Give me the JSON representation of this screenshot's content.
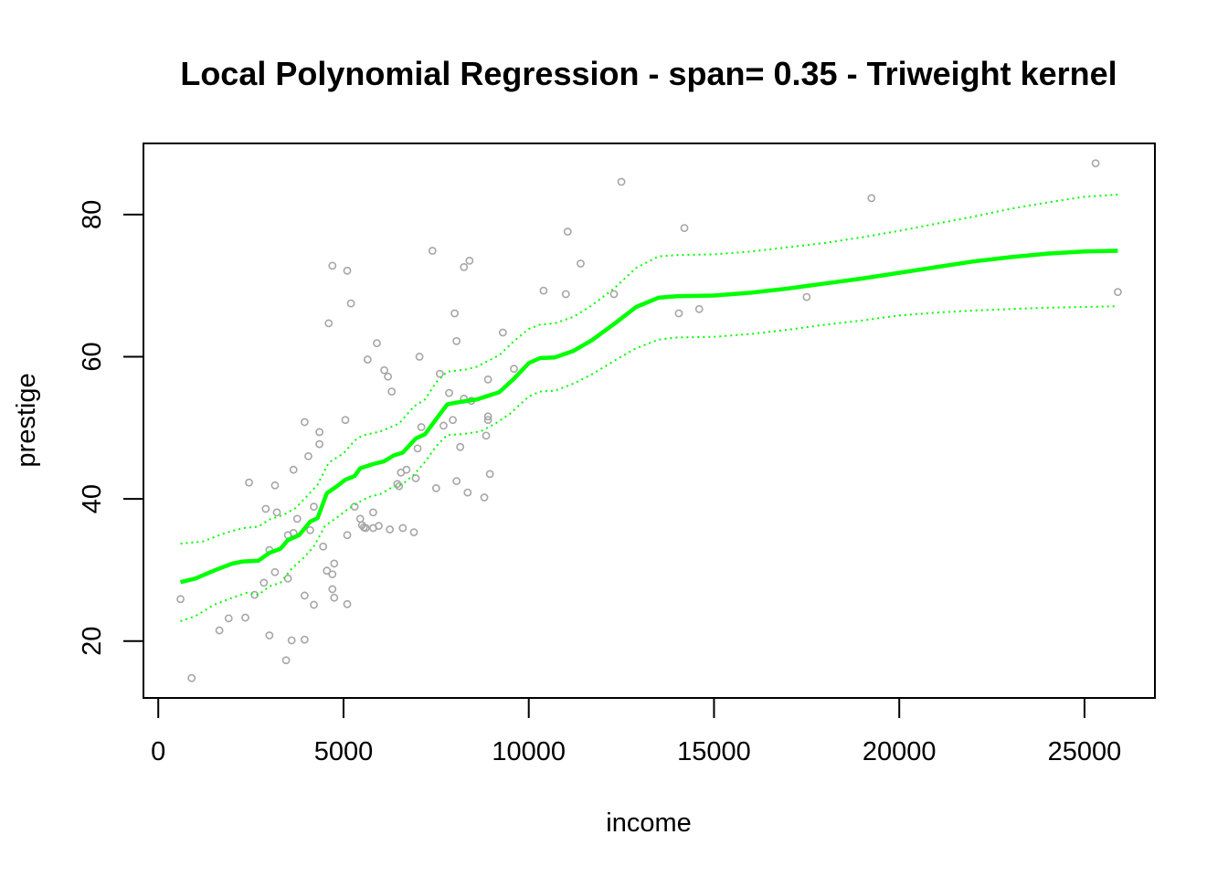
{
  "chart_data": {
    "type": "scatter",
    "title": "Local Polynomial Regression - span= 0.35 - Triweight kernel",
    "xlabel": "income",
    "ylabel": "prestige",
    "xlim": [
      -400,
      26900
    ],
    "ylim": [
      12,
      90
    ],
    "x_ticks": [
      0,
      5000,
      10000,
      15000,
      20000,
      25000
    ],
    "y_ticks": [
      20,
      40,
      60,
      80
    ],
    "grid": false,
    "colors": {
      "points": "#a6a6a6",
      "fit": "#00ff00",
      "band": "#00ff00",
      "axes": "#000000"
    },
    "points": [
      [
        600,
        25.9
      ],
      [
        900,
        14.8
      ],
      [
        1650,
        21.5
      ],
      [
        1900,
        23.2
      ],
      [
        2350,
        23.3
      ],
      [
        2450,
        42.3
      ],
      [
        2600,
        26.5
      ],
      [
        2850,
        28.2
      ],
      [
        2900,
        38.6
      ],
      [
        3000,
        20.8
      ],
      [
        3000,
        32.8
      ],
      [
        3150,
        29.7
      ],
      [
        3150,
        41.9
      ],
      [
        3200,
        38.1
      ],
      [
        3450,
        17.3
      ],
      [
        3500,
        28.8
      ],
      [
        3500,
        34.9
      ],
      [
        3600,
        20.1
      ],
      [
        3650,
        35.2
      ],
      [
        3650,
        44.1
      ],
      [
        3750,
        37.2
      ],
      [
        3950,
        20.2
      ],
      [
        3950,
        26.4
      ],
      [
        3950,
        50.8
      ],
      [
        4050,
        46.0
      ],
      [
        4100,
        35.6
      ],
      [
        4200,
        38.9
      ],
      [
        4200,
        25.1
      ],
      [
        4350,
        47.7
      ],
      [
        4350,
        49.4
      ],
      [
        4450,
        33.3
      ],
      [
        4550,
        29.9
      ],
      [
        4600,
        64.7
      ],
      [
        4700,
        72.8
      ],
      [
        4700,
        27.3
      ],
      [
        4700,
        29.4
      ],
      [
        4750,
        26.1
      ],
      [
        4750,
        30.9
      ],
      [
        5050,
        51.1
      ],
      [
        5100,
        72.1
      ],
      [
        5100,
        25.2
      ],
      [
        5100,
        34.9
      ],
      [
        5200,
        67.5
      ],
      [
        5300,
        38.9
      ],
      [
        5450,
        37.2
      ],
      [
        5500,
        36.3
      ],
      [
        5550,
        36.0
      ],
      [
        5600,
        35.9
      ],
      [
        5650,
        59.6
      ],
      [
        5800,
        38.1
      ],
      [
        5800,
        35.9
      ],
      [
        5900,
        61.9
      ],
      [
        5950,
        36.2
      ],
      [
        6100,
        58.1
      ],
      [
        6200,
        57.2
      ],
      [
        6250,
        35.7
      ],
      [
        6300,
        55.1
      ],
      [
        6450,
        42.1
      ],
      [
        6500,
        41.8
      ],
      [
        6550,
        43.7
      ],
      [
        6600,
        35.9
      ],
      [
        6700,
        44.1
      ],
      [
        6900,
        35.3
      ],
      [
        6950,
        42.9
      ],
      [
        7000,
        47.1
      ],
      [
        7050,
        60.0
      ],
      [
        7100,
        50.1
      ],
      [
        7400,
        74.9
      ],
      [
        7500,
        41.5
      ],
      [
        7600,
        57.6
      ],
      [
        7700,
        50.3
      ],
      [
        7850,
        54.9
      ],
      [
        7950,
        51.1
      ],
      [
        8000,
        66.1
      ],
      [
        8050,
        62.2
      ],
      [
        8050,
        42.5
      ],
      [
        8150,
        47.3
      ],
      [
        8250,
        54.1
      ],
      [
        8250,
        72.6
      ],
      [
        8350,
        40.9
      ],
      [
        8400,
        73.5
      ],
      [
        8450,
        53.8
      ],
      [
        8800,
        40.2
      ],
      [
        8850,
        48.9
      ],
      [
        8900,
        56.8
      ],
      [
        8900,
        51.1
      ],
      [
        8900,
        51.6
      ],
      [
        8950,
        43.5
      ],
      [
        9300,
        63.4
      ],
      [
        9600,
        58.3
      ],
      [
        10400,
        69.3
      ],
      [
        11000,
        68.8
      ],
      [
        11050,
        77.6
      ],
      [
        11400,
        73.1
      ],
      [
        12300,
        68.8
      ],
      [
        12500,
        84.6
      ],
      [
        14050,
        66.1
      ],
      [
        14200,
        78.1
      ],
      [
        14600,
        66.7
      ],
      [
        17500,
        68.4
      ],
      [
        19250,
        82.3
      ],
      [
        25300,
        87.2
      ],
      [
        25900,
        69.1
      ]
    ],
    "fit": [
      [
        600,
        28.3
      ],
      [
        1000,
        28.8
      ],
      [
        1500,
        29.9
      ],
      [
        2000,
        30.9
      ],
      [
        2300,
        31.2
      ],
      [
        2700,
        31.3
      ],
      [
        3000,
        32.4
      ],
      [
        3300,
        33.0
      ],
      [
        3500,
        34.2
      ],
      [
        3800,
        34.9
      ],
      [
        4100,
        36.8
      ],
      [
        4300,
        37.3
      ],
      [
        4550,
        40.8
      ],
      [
        4800,
        41.7
      ],
      [
        5050,
        42.7
      ],
      [
        5300,
        43.2
      ],
      [
        5450,
        44.3
      ],
      [
        5800,
        44.9
      ],
      [
        6100,
        45.3
      ],
      [
        6350,
        46.1
      ],
      [
        6600,
        46.5
      ],
      [
        6950,
        48.5
      ],
      [
        7200,
        49.1
      ],
      [
        7500,
        51.2
      ],
      [
        7800,
        53.3
      ],
      [
        8100,
        53.6
      ],
      [
        8600,
        54.0
      ],
      [
        8900,
        54.5
      ],
      [
        9200,
        55.0
      ],
      [
        9600,
        56.9
      ],
      [
        10000,
        59.1
      ],
      [
        10300,
        59.8
      ],
      [
        10700,
        59.9
      ],
      [
        11200,
        60.8
      ],
      [
        11700,
        62.3
      ],
      [
        12300,
        64.6
      ],
      [
        12900,
        67.0
      ],
      [
        13500,
        68.3
      ],
      [
        14000,
        68.5
      ],
      [
        15000,
        68.6
      ],
      [
        16000,
        69.0
      ],
      [
        17000,
        69.6
      ],
      [
        18000,
        70.3
      ],
      [
        19000,
        71.0
      ],
      [
        20000,
        71.8
      ],
      [
        21000,
        72.6
      ],
      [
        22000,
        73.4
      ],
      [
        23000,
        74.0
      ],
      [
        24000,
        74.5
      ],
      [
        25000,
        74.8
      ],
      [
        25900,
        74.9
      ]
    ],
    "band_upper": [
      [
        600,
        33.7
      ],
      [
        1200,
        34.0
      ],
      [
        1800,
        35.2
      ],
      [
        2300,
        35.9
      ],
      [
        2700,
        36.1
      ],
      [
        3000,
        37.1
      ],
      [
        3400,
        37.8
      ],
      [
        3700,
        38.7
      ],
      [
        4000,
        40.3
      ],
      [
        4300,
        42.0
      ],
      [
        4600,
        45.1
      ],
      [
        5000,
        46.4
      ],
      [
        5300,
        48.2
      ],
      [
        5500,
        48.9
      ],
      [
        6000,
        49.5
      ],
      [
        6500,
        50.6
      ],
      [
        6900,
        53.0
      ],
      [
        7200,
        54.0
      ],
      [
        7500,
        56.4
      ],
      [
        7800,
        57.9
      ],
      [
        8300,
        58.2
      ],
      [
        8600,
        58.6
      ],
      [
        9200,
        60.2
      ],
      [
        9600,
        62.2
      ],
      [
        10000,
        63.9
      ],
      [
        10300,
        64.5
      ],
      [
        10700,
        64.7
      ],
      [
        11200,
        65.6
      ],
      [
        11700,
        67.2
      ],
      [
        12300,
        69.6
      ],
      [
        12900,
        72.5
      ],
      [
        13500,
        74.1
      ],
      [
        14000,
        74.3
      ],
      [
        15000,
        74.4
      ],
      [
        16000,
        74.8
      ],
      [
        17000,
        75.4
      ],
      [
        18000,
        76.0
      ],
      [
        19000,
        76.8
      ],
      [
        20000,
        77.7
      ],
      [
        21000,
        78.7
      ],
      [
        22000,
        79.7
      ],
      [
        23000,
        80.8
      ],
      [
        24000,
        81.7
      ],
      [
        25000,
        82.5
      ],
      [
        25900,
        82.8
      ]
    ],
    "band_lower": [
      [
        600,
        22.8
      ],
      [
        1000,
        23.5
      ],
      [
        1500,
        25.1
      ],
      [
        2000,
        26.1
      ],
      [
        2400,
        26.8
      ],
      [
        2700,
        26.5
      ],
      [
        3000,
        27.7
      ],
      [
        3300,
        28.2
      ],
      [
        3600,
        30.2
      ],
      [
        3900,
        31.6
      ],
      [
        4200,
        33.3
      ],
      [
        4500,
        36.2
      ],
      [
        4800,
        37.3
      ],
      [
        5100,
        38.5
      ],
      [
        5400,
        39.5
      ],
      [
        5700,
        40.3
      ],
      [
        6000,
        40.7
      ],
      [
        6300,
        41.6
      ],
      [
        6600,
        42.1
      ],
      [
        6900,
        43.4
      ],
      [
        7200,
        45.2
      ],
      [
        7500,
        47.4
      ],
      [
        7800,
        49.0
      ],
      [
        8200,
        49.1
      ],
      [
        8700,
        49.5
      ],
      [
        9100,
        50.6
      ],
      [
        9500,
        52.0
      ],
      [
        10000,
        54.4
      ],
      [
        10300,
        55.1
      ],
      [
        10700,
        55.2
      ],
      [
        11200,
        56.2
      ],
      [
        11700,
        57.5
      ],
      [
        12300,
        59.4
      ],
      [
        12900,
        61.2
      ],
      [
        13500,
        62.4
      ],
      [
        14000,
        62.7
      ],
      [
        15000,
        62.8
      ],
      [
        16000,
        63.2
      ],
      [
        17000,
        63.8
      ],
      [
        18000,
        64.5
      ],
      [
        19000,
        65.1
      ],
      [
        20000,
        65.8
      ],
      [
        21000,
        66.2
      ],
      [
        22000,
        66.5
      ],
      [
        23000,
        66.7
      ],
      [
        24000,
        66.9
      ],
      [
        25000,
        67.0
      ],
      [
        25900,
        67.1
      ]
    ]
  }
}
